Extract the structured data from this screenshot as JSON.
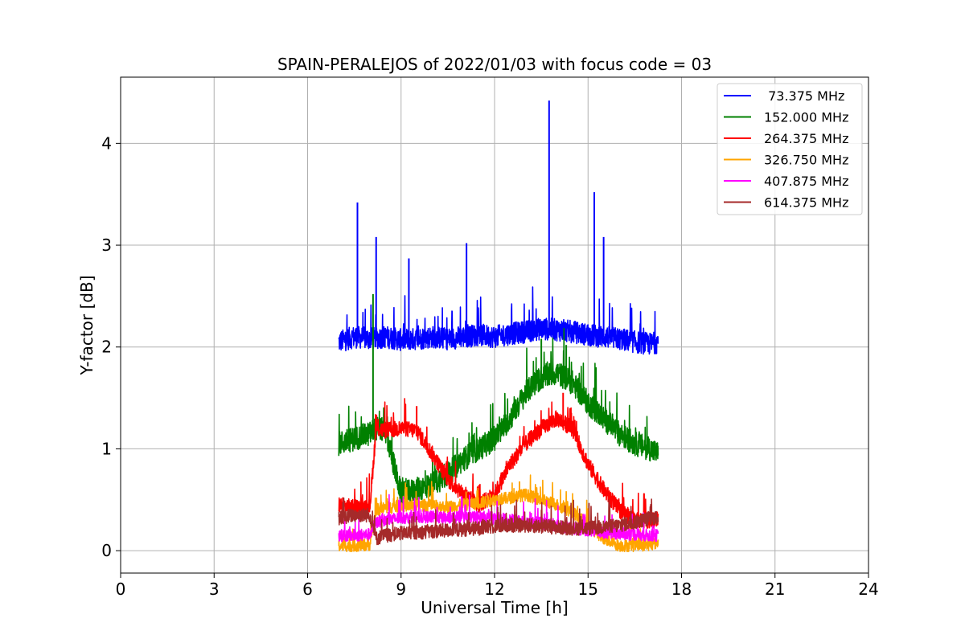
{
  "chart_data": {
    "type": "line",
    "title": "SPAIN-PERALEJOS of 2022/01/03 with focus code = 03",
    "xlabel": "Universal Time [h]",
    "ylabel": "Y-factor [dB]",
    "xlim": [
      0,
      24
    ],
    "ylim": [
      -0.22,
      4.65
    ],
    "xticks": [
      0,
      3,
      6,
      9,
      12,
      15,
      18,
      21,
      24
    ],
    "yticks": [
      0,
      1,
      2,
      3,
      4
    ],
    "xtick_labels": [
      "0",
      "3",
      "6",
      "9",
      "12",
      "15",
      "18",
      "21",
      "24"
    ],
    "ytick_labels": [
      "0",
      "1",
      "2",
      "3",
      "4"
    ],
    "grid": true,
    "legend_position": "top-right",
    "series": [
      {
        "name": " 73.375 MHz",
        "color": "#0000ff",
        "x": [
          7.0,
          7.5,
          8.0,
          8.5,
          9.0,
          9.5,
          10.0,
          10.5,
          11.0,
          11.5,
          12.0,
          12.5,
          13.0,
          13.5,
          14.0,
          14.5,
          15.0,
          15.5,
          16.0,
          16.5,
          17.0,
          17.25
        ],
        "values": [
          2.05,
          2.1,
          2.08,
          2.1,
          2.07,
          2.08,
          2.1,
          2.08,
          2.1,
          2.12,
          2.1,
          2.13,
          2.15,
          2.18,
          2.17,
          2.15,
          2.12,
          2.1,
          2.08,
          2.05,
          2.03,
          2.05
        ],
        "spikes": [
          [
            7.6,
            3.42
          ],
          [
            8.2,
            3.08
          ],
          [
            9.25,
            2.87
          ],
          [
            11.1,
            3.02
          ],
          [
            13.75,
            4.42
          ],
          [
            15.2,
            3.52
          ],
          [
            15.5,
            3.08
          ]
        ]
      },
      {
        "name": "152.000 MHz",
        "color": "#008000",
        "x": [
          7.0,
          7.5,
          8.0,
          8.2,
          8.5,
          9.0,
          9.5,
          10.0,
          10.5,
          11.0,
          11.5,
          12.0,
          12.5,
          13.0,
          13.5,
          14.0,
          14.5,
          15.0,
          15.5,
          16.0,
          16.5,
          17.0,
          17.25
        ],
        "values": [
          1.05,
          1.1,
          1.15,
          1.2,
          1.18,
          0.55,
          0.6,
          0.65,
          0.75,
          0.9,
          1.0,
          1.1,
          1.3,
          1.55,
          1.7,
          1.75,
          1.65,
          1.45,
          1.3,
          1.15,
          1.05,
          1.0,
          0.95
        ],
        "spikes": [
          [
            8.1,
            2.52
          ],
          [
            13.5,
            2.08
          ],
          [
            14.3,
            2.02
          ]
        ]
      },
      {
        "name": "264.375 MHz",
        "color": "#ff0000",
        "x": [
          7.0,
          7.5,
          8.0,
          8.2,
          8.5,
          9.0,
          9.5,
          10.0,
          10.5,
          11.0,
          11.5,
          12.0,
          12.5,
          13.0,
          13.5,
          14.0,
          14.5,
          15.0,
          15.5,
          16.0,
          16.5,
          17.0,
          17.25
        ],
        "values": [
          0.45,
          0.42,
          0.44,
          1.2,
          1.18,
          1.2,
          1.18,
          0.95,
          0.7,
          0.55,
          0.45,
          0.55,
          0.85,
          1.05,
          1.2,
          1.3,
          1.2,
          0.85,
          0.6,
          0.4,
          0.3,
          0.3,
          0.3
        ],
        "spikes": [
          [
            9.5,
            1.42
          ],
          [
            14.2,
            1.55
          ]
        ]
      },
      {
        "name": "326.750 MHz",
        "color": "#ffa500",
        "x": [
          7.0,
          7.5,
          8.0,
          8.2,
          8.5,
          9.0,
          9.5,
          10.0,
          10.5,
          11.0,
          11.5,
          12.0,
          12.5,
          13.0,
          13.5,
          14.0,
          14.5,
          15.0,
          15.5,
          16.0,
          16.5,
          17.0,
          17.25
        ],
        "values": [
          0.05,
          0.05,
          0.06,
          0.4,
          0.42,
          0.44,
          0.45,
          0.44,
          0.43,
          0.45,
          0.47,
          0.5,
          0.52,
          0.55,
          0.5,
          0.45,
          0.38,
          0.25,
          0.12,
          0.05,
          0.05,
          0.06,
          0.08
        ],
        "spikes": [
          [
            12.8,
            0.68
          ]
        ]
      },
      {
        "name": "407.875 MHz",
        "color": "#ff00ff",
        "x": [
          7.0,
          7.5,
          8.0,
          8.2,
          8.5,
          9.0,
          9.5,
          10.0,
          10.5,
          11.0,
          11.5,
          12.0,
          12.5,
          13.0,
          13.5,
          14.0,
          14.5,
          15.0,
          15.5,
          16.0,
          16.5,
          17.0,
          17.25
        ],
        "values": [
          0.15,
          0.15,
          0.16,
          0.28,
          0.3,
          0.32,
          0.33,
          0.33,
          0.32,
          0.33,
          0.33,
          0.32,
          0.3,
          0.28,
          0.27,
          0.25,
          0.22,
          0.2,
          0.18,
          0.17,
          0.16,
          0.15,
          0.15
        ],
        "spikes": []
      },
      {
        "name": "614.375 MHz",
        "color": "#a52a2a",
        "x": [
          7.0,
          7.5,
          8.0,
          8.2,
          8.5,
          9.0,
          9.5,
          10.0,
          10.5,
          11.0,
          11.5,
          12.0,
          12.5,
          13.0,
          13.5,
          14.0,
          14.5,
          15.0,
          15.5,
          16.0,
          16.5,
          17.0,
          17.25
        ],
        "values": [
          0.32,
          0.35,
          0.35,
          0.12,
          0.15,
          0.17,
          0.18,
          0.19,
          0.2,
          0.21,
          0.22,
          0.24,
          0.25,
          0.25,
          0.24,
          0.23,
          0.22,
          0.22,
          0.23,
          0.25,
          0.28,
          0.32,
          0.33
        ],
        "spikes": []
      }
    ]
  }
}
